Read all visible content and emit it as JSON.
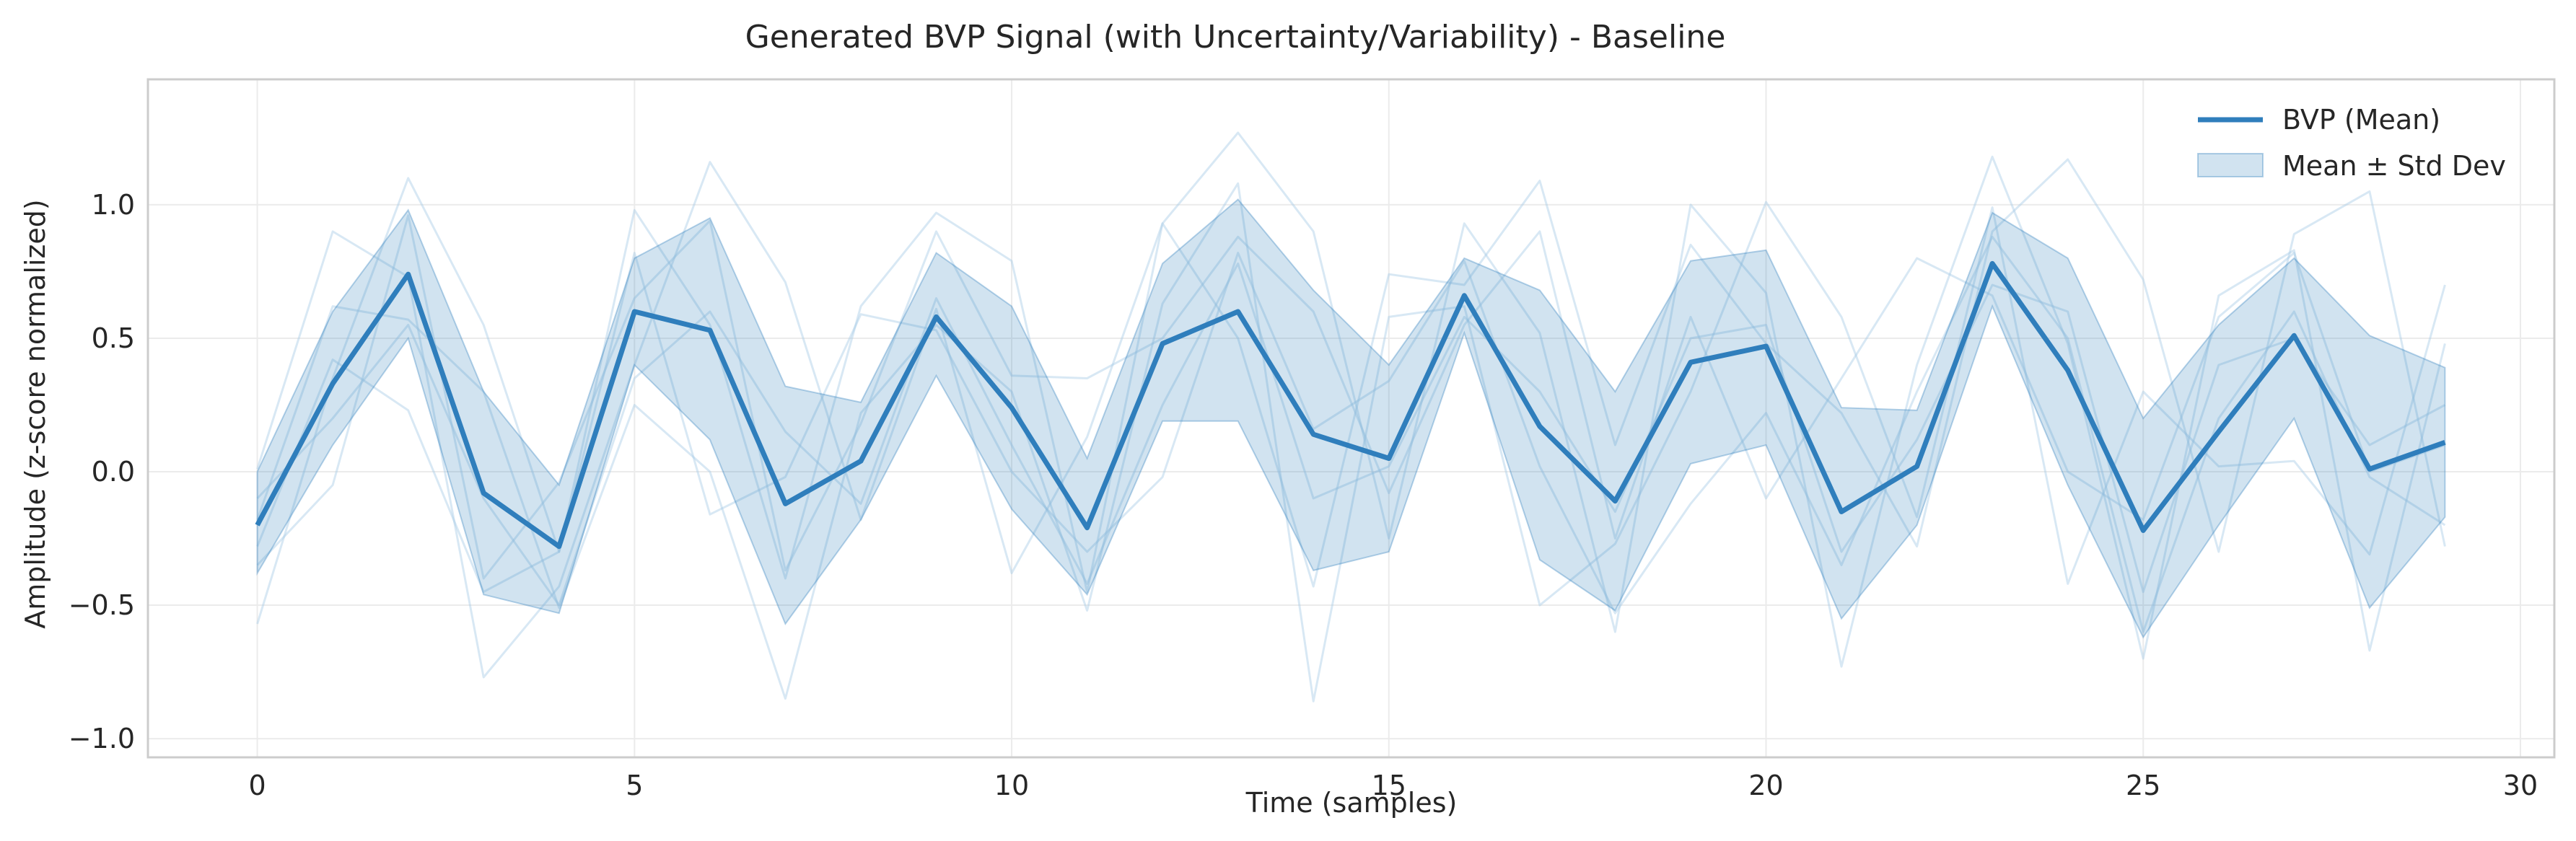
{
  "chart_data": {
    "type": "line",
    "title": "Generated BVP Signal (with Uncertainty/Variability) - Baseline",
    "xlabel": "Time (samples)",
    "ylabel": "Amplitude (z-score normalized)",
    "xlim": [
      -1.45,
      30.45
    ],
    "ylim": [
      -1.07,
      1.47
    ],
    "xticks": [
      0,
      5,
      10,
      15,
      20,
      25,
      30
    ],
    "xtick_labels": [
      "0",
      "5",
      "10",
      "15",
      "20",
      "25",
      "30"
    ],
    "yticks": [
      1.0,
      0.5,
      0.0,
      -0.5,
      -1.0
    ],
    "ytick_labels": [
      "1.0",
      "0.5",
      "0.0",
      "−0.5",
      "−1.0"
    ],
    "grid": true,
    "legend": {
      "position": "top-right",
      "entries": [
        "BVP (Mean)",
        "Mean ± Std Dev"
      ]
    },
    "colors": {
      "mean": "#2f7ebc",
      "band": "#2f7ebc",
      "samples": "#a9cbe6"
    },
    "x": [
      0,
      1,
      2,
      3,
      4,
      5,
      6,
      7,
      8,
      9,
      10,
      11,
      12,
      13,
      14,
      15,
      16,
      17,
      18,
      19,
      20,
      21,
      22,
      23,
      24,
      25,
      26,
      27,
      28,
      29
    ],
    "series": [
      {
        "name": "BVP (Mean)",
        "values": [
          -0.2,
          0.33,
          0.74,
          -0.08,
          -0.28,
          0.6,
          0.53,
          -0.12,
          0.04,
          0.58,
          0.24,
          -0.21,
          0.48,
          0.6,
          0.14,
          0.05,
          0.66,
          0.17,
          -0.11,
          0.41,
          0.47,
          -0.15,
          0.02,
          0.78,
          0.38,
          -0.22,
          0.15,
          0.51,
          0.01,
          0.11
        ]
      },
      {
        "name": "Mean ± Std Dev",
        "upper": [
          0.0,
          0.6,
          0.98,
          0.3,
          -0.05,
          0.8,
          0.95,
          0.32,
          0.26,
          0.82,
          0.62,
          0.05,
          0.78,
          1.02,
          0.68,
          0.4,
          0.8,
          0.68,
          0.3,
          0.79,
          0.83,
          0.24,
          0.23,
          0.97,
          0.8,
          0.2,
          0.55,
          0.8,
          0.51,
          0.39
        ],
        "lower": [
          -0.38,
          0.1,
          0.5,
          -0.46,
          -0.53,
          0.4,
          0.12,
          -0.57,
          -0.18,
          0.36,
          -0.14,
          -0.46,
          0.19,
          0.19,
          -0.37,
          -0.3,
          0.52,
          -0.33,
          -0.52,
          0.03,
          0.1,
          -0.55,
          -0.2,
          0.62,
          -0.05,
          -0.62,
          -0.2,
          0.2,
          -0.51,
          -0.17
        ]
      }
    ],
    "samples": [
      [
        -0.57,
        0.35,
        1.1,
        0.55,
        -0.3,
        0.98,
        0.55,
        -0.4,
        0.62,
        0.97,
        0.79,
        -0.45,
        0.93,
        1.27,
        0.9,
        -0.25,
        0.93,
        0.52,
        -0.6,
        1.0,
        0.67,
        -0.73,
        0.4,
        1.18,
        0.48,
        -0.7,
        0.66,
        0.83,
        -0.67,
        0.48
      ],
      [
        0.01,
        0.9,
        0.73,
        -0.77,
        -0.43,
        0.4,
        1.16,
        0.71,
        -0.18,
        0.61,
        -0.38,
        0.13,
        0.93,
        0.5,
        -0.43,
        0.74,
        0.7,
        1.09,
        0.1,
        0.85,
        0.48,
        0.22,
        -0.28,
        0.9,
        1.17,
        0.72,
        -0.3,
        0.89,
        1.05,
        -0.28
      ],
      [
        -0.18,
        0.62,
        0.57,
        0.3,
        -0.51,
        0.25,
        0.0,
        -0.85,
        0.22,
        0.55,
        0.3,
        -0.52,
        0.63,
        1.08,
        -0.86,
        0.58,
        0.62,
        -0.5,
        -0.27,
        0.3,
        1.01,
        0.58,
        -0.17,
        0.99,
        -0.42,
        0.3,
        0.02,
        0.04,
        -0.31,
        0.7
      ],
      [
        -0.35,
        -0.05,
        0.96,
        -0.4,
        -0.04,
        0.65,
        0.94,
        -0.37,
        0.18,
        0.9,
        0.36,
        0.35,
        0.5,
        0.88,
        0.6,
        -0.08,
        0.55,
        0.9,
        -0.25,
        0.58,
        -0.1,
        0.35,
        0.8,
        0.66,
        0.0,
        -0.18,
        0.58,
        0.82,
        0.0,
        0.1
      ],
      [
        -0.28,
        0.42,
        0.23,
        -0.45,
        -0.3,
        0.82,
        -0.16,
        -0.02,
        0.59,
        0.53,
        0.0,
        -0.3,
        -0.02,
        0.82,
        0.16,
        0.34,
        0.79,
        0.02,
        -0.53,
        -0.12,
        0.22,
        -0.35,
        0.3,
        0.88,
        0.5,
        -0.6,
        0.2,
        0.6,
        -0.02,
        -0.2
      ],
      [
        -0.1,
        0.2,
        0.55,
        -0.1,
        -0.5,
        0.35,
        0.6,
        0.15,
        -0.12,
        0.65,
        0.1,
        -0.42,
        0.25,
        0.78,
        -0.1,
        0.02,
        0.58,
        0.3,
        -0.15,
        0.5,
        0.55,
        -0.3,
        0.12,
        0.7,
        0.6,
        -0.45,
        0.4,
        0.5,
        0.1,
        0.25
      ]
    ]
  }
}
